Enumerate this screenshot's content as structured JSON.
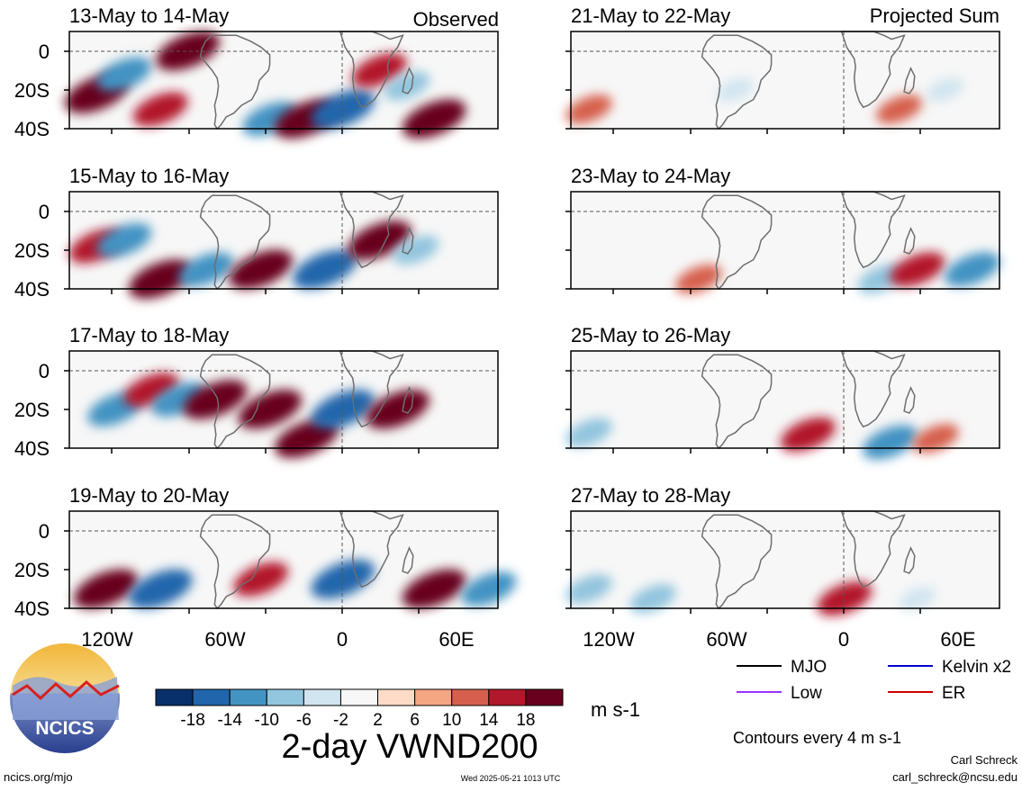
{
  "header": {
    "left_label": "Observed",
    "right_label": "Projected Sum"
  },
  "panels_left": [
    {
      "title": "13-May to 14-May"
    },
    {
      "title": "15-May to 16-May"
    },
    {
      "title": "17-May to 18-May"
    },
    {
      "title": "19-May to 20-May"
    }
  ],
  "panels_right": [
    {
      "title": "21-May to 22-May"
    },
    {
      "title": "23-May to 24-May"
    },
    {
      "title": "25-May to 26-May"
    },
    {
      "title": "27-May to 28-May"
    }
  ],
  "axes": {
    "y_ticks": [
      "0",
      "20S",
      "40S"
    ],
    "x_ticks": [
      "120W",
      "60W",
      "0",
      "60E"
    ]
  },
  "colorbar": {
    "tick_labels": [
      "-18",
      "-14",
      "-10",
      "-6",
      "-2",
      "2",
      "6",
      "10",
      "14",
      "18"
    ],
    "colors": [
      "#08306b",
      "#2166ac",
      "#4393c3",
      "#92c5de",
      "#d1e5f0",
      "#f7f7f7",
      "#fddbc7",
      "#f4a582",
      "#d6604d",
      "#b2182b",
      "#67001f"
    ],
    "units": "m s-1"
  },
  "chart_title": "2-day VWND200",
  "legend": {
    "items": [
      {
        "label": "MJO",
        "color": "#000000"
      },
      {
        "label": "Kelvin x2",
        "color": "#0000cc"
      },
      {
        "label": "Low",
        "color": "#9b30ff"
      },
      {
        "label": "ER",
        "color": "#cc0000"
      }
    ],
    "note": "Contours every 4 m s-1"
  },
  "logo": {
    "text": "NCICS"
  },
  "footer": {
    "left": "ncics.org/mjo",
    "center": "Wed 2025-05-21 1013 UTC",
    "author": "Carl Schreck",
    "email": "carl_schreck@ncsu.edu"
  },
  "chart_data": {
    "type": "heatmap",
    "variable": "2-day VWND200",
    "units": "m s-1",
    "ylim": [
      "10N",
      "40S"
    ],
    "xlim": [
      "150W",
      "85E"
    ],
    "contour_levels": [
      -18,
      -14,
      -10,
      -6,
      -2,
      2,
      6,
      10,
      14,
      18
    ],
    "observed": [
      {
        "period": "13-May to 14-May",
        "blobs": [
          {
            "lon": -135,
            "lat": -22,
            "value": 18
          },
          {
            "lon": -120,
            "lat": -12,
            "value": -14
          },
          {
            "lon": -100,
            "lat": -30,
            "value": 14
          },
          {
            "lon": -85,
            "lat": 0,
            "value": 18
          },
          {
            "lon": -40,
            "lat": -35,
            "value": -14
          },
          {
            "lon": -20,
            "lat": -35,
            "value": 18
          },
          {
            "lon": 0,
            "lat": -30,
            "value": -18
          },
          {
            "lon": 20,
            "lat": -10,
            "value": 14
          },
          {
            "lon": 35,
            "lat": -18,
            "value": -10
          },
          {
            "lon": 50,
            "lat": -35,
            "value": 18
          }
        ]
      },
      {
        "period": "15-May to 16-May",
        "blobs": [
          {
            "lon": -135,
            "lat": -18,
            "value": 14
          },
          {
            "lon": -120,
            "lat": -15,
            "value": -14
          },
          {
            "lon": -100,
            "lat": -35,
            "value": 18
          },
          {
            "lon": -75,
            "lat": -30,
            "value": -14
          },
          {
            "lon": -45,
            "lat": -30,
            "value": 18
          },
          {
            "lon": -10,
            "lat": -30,
            "value": -18
          },
          {
            "lon": 20,
            "lat": -15,
            "value": 18
          },
          {
            "lon": 40,
            "lat": -20,
            "value": -10
          }
        ]
      },
      {
        "period": "17-May to 18-May",
        "blobs": [
          {
            "lon": -125,
            "lat": -20,
            "value": -14
          },
          {
            "lon": -105,
            "lat": -10,
            "value": 14
          },
          {
            "lon": -90,
            "lat": -15,
            "value": -14
          },
          {
            "lon": -70,
            "lat": -15,
            "value": 18
          },
          {
            "lon": -40,
            "lat": -20,
            "value": 18
          },
          {
            "lon": -20,
            "lat": -35,
            "value": 18
          },
          {
            "lon": 0,
            "lat": -20,
            "value": -18
          },
          {
            "lon": 30,
            "lat": -20,
            "value": 18
          }
        ]
      },
      {
        "period": "19-May to 20-May",
        "blobs": [
          {
            "lon": -130,
            "lat": -30,
            "value": 18
          },
          {
            "lon": -100,
            "lat": -30,
            "value": -18
          },
          {
            "lon": -45,
            "lat": -25,
            "value": 14
          },
          {
            "lon": 0,
            "lat": -25,
            "value": -18
          },
          {
            "lon": 50,
            "lat": -30,
            "value": 18
          },
          {
            "lon": 80,
            "lat": -30,
            "value": -14
          }
        ]
      }
    ],
    "projected": [
      {
        "period": "21-May to 22-May",
        "blobs": [
          {
            "lon": -140,
            "lat": -30,
            "value": 10
          },
          {
            "lon": -60,
            "lat": -20,
            "value": -6
          },
          {
            "lon": 30,
            "lat": -30,
            "value": 10
          },
          {
            "lon": 55,
            "lat": -20,
            "value": -6
          }
        ]
      },
      {
        "period": "23-May to 24-May",
        "blobs": [
          {
            "lon": -80,
            "lat": -35,
            "value": 10
          },
          {
            "lon": 20,
            "lat": -35,
            "value": -10
          },
          {
            "lon": 40,
            "lat": -30,
            "value": 14
          },
          {
            "lon": 70,
            "lat": -30,
            "value": -14
          }
        ]
      },
      {
        "period": "25-May to 26-May",
        "blobs": [
          {
            "lon": -140,
            "lat": -32,
            "value": -10
          },
          {
            "lon": -20,
            "lat": -33,
            "value": 14
          },
          {
            "lon": 25,
            "lat": -37,
            "value": -14
          },
          {
            "lon": 50,
            "lat": -35,
            "value": 10
          }
        ]
      },
      {
        "period": "27-May to 28-May",
        "blobs": [
          {
            "lon": -140,
            "lat": -30,
            "value": -10
          },
          {
            "lon": -105,
            "lat": -35,
            "value": -10
          },
          {
            "lon": 0,
            "lat": -35,
            "value": 14
          },
          {
            "lon": 40,
            "lat": -35,
            "value": -6
          }
        ]
      }
    ]
  }
}
